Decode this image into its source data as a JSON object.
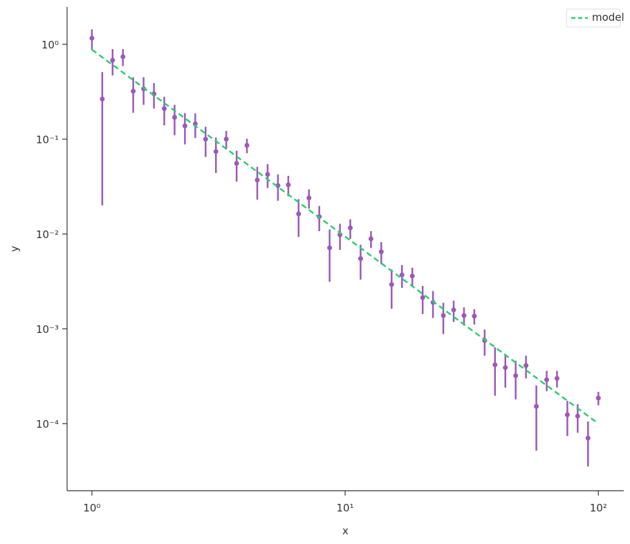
{
  "chart_data": {
    "type": "scatter",
    "xlabel": "x",
    "ylabel": "y",
    "xscale": "log",
    "yscale": "log",
    "xlim": [
      0.798,
      126
    ],
    "ylim": [
      1.96e-05,
      2.48
    ],
    "xticks": [
      {
        "value": 1,
        "label": "10⁰"
      },
      {
        "value": 10,
        "label": "10¹"
      },
      {
        "value": 100,
        "label": "10²"
      }
    ],
    "yticks": [
      {
        "value": 0.0001,
        "label": "10⁻⁴"
      },
      {
        "value": 0.001,
        "label": "10⁻³"
      },
      {
        "value": 0.01,
        "label": "10⁻²"
      },
      {
        "value": 0.1,
        "label": "10⁻¹"
      },
      {
        "value": 1,
        "label": "10⁰"
      }
    ],
    "legend": "upper right",
    "series": [
      {
        "color": "#9b59b6",
        "x": [
          1,
          1.099,
          1.207,
          1.326,
          1.456,
          1.6,
          1.758,
          1.931,
          2.121,
          2.33,
          2.56,
          2.812,
          3.089,
          3.393,
          3.728,
          4.095,
          4.498,
          4.942,
          5.429,
          5.964,
          6.551,
          7.197,
          7.906,
          8.685,
          9.541,
          10.48,
          11.51,
          12.65,
          13.89,
          15.26,
          16.77,
          18.42,
          20.24,
          22.23,
          24.42,
          26.83,
          29.47,
          32.37,
          35.56,
          39.07,
          42.92,
          47.15,
          51.79,
          56.9,
          62.51,
          68.66,
          75.43,
          82.86,
          91.03,
          100
        ],
        "values": [
          1.16,
          0.265,
          0.68,
          0.74,
          0.32,
          0.34,
          0.3,
          0.21,
          0.17,
          0.138,
          0.145,
          0.1,
          0.074,
          0.1,
          0.0556,
          0.086,
          0.037,
          0.0425,
          0.0324,
          0.033,
          0.0163,
          0.024,
          0.0152,
          0.00714,
          0.0098,
          0.0116,
          0.0055,
          0.0089,
          0.0065,
          0.00293,
          0.0037,
          0.0036,
          0.00213,
          0.0019,
          0.00138,
          0.00158,
          0.00138,
          0.00136,
          0.00075,
          0.000417,
          0.00039,
          0.00032,
          0.00041,
          0.000152,
          0.00029,
          0.0003,
          0.000124,
          0.00012,
          7.03e-05,
          0.000186
        ],
        "errors": [
          0.28,
          0.245,
          0.21,
          0.15,
          0.13,
          0.11,
          0.09,
          0.07,
          0.06,
          0.05,
          0.042,
          0.035,
          0.03,
          0.022,
          0.02,
          0.015,
          0.014,
          0.012,
          0.01,
          0.008,
          0.007,
          0.0055,
          0.0045,
          0.004,
          0.003,
          0.0027,
          0.0022,
          0.0018,
          0.0017,
          0.0013,
          0.001,
          0.0008,
          0.0007,
          0.0006,
          0.0005,
          0.0004,
          0.0003,
          0.00025,
          0.00023,
          0.00022,
          0.00015,
          0.00014,
          0.00011,
          0.0001,
          7e-05,
          6e-05,
          5e-05,
          4e-05,
          3.5e-05,
          3e-05
        ]
      },
      {
        "name": "model",
        "type": "line",
        "dashed": true,
        "color": "#2ecc71",
        "x": [
          1,
          100
        ],
        "values": [
          0.88,
          0.0001
        ]
      }
    ]
  }
}
